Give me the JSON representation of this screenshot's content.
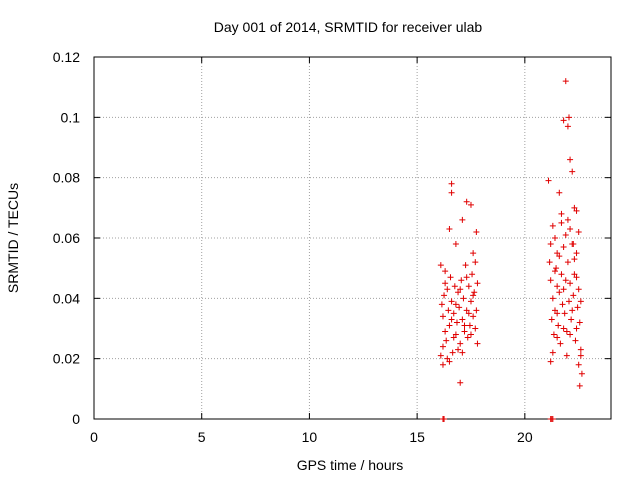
{
  "chart_data": {
    "type": "scatter",
    "title": "Day 001 of 2014, SRMTID for receiver ulab",
    "xlabel": "GPS time / hours",
    "ylabel": "SRMTID / TECUs",
    "xlim": [
      0,
      24
    ],
    "ylim": [
      0,
      0.12
    ],
    "x_ticks": [
      0,
      5,
      10,
      15,
      20
    ],
    "x_tick_labels": [
      "0",
      "5",
      "10",
      "15",
      "20"
    ],
    "y_ticks": [
      0,
      0.02,
      0.04,
      0.06,
      0.08,
      0.1,
      0.12
    ],
    "y_tick_labels": [
      "0",
      "0.02",
      "0.04",
      "0.06",
      "0.08",
      "0.1",
      "0.12"
    ],
    "grid": true,
    "legend": "none",
    "marker": "plus",
    "color": "#e00000",
    "series": [
      {
        "values": [
          [
            16.2,
            0.0
          ],
          [
            16.25,
            0.0
          ],
          [
            21.2,
            0.0
          ],
          [
            21.25,
            0.0
          ],
          [
            21.3,
            0.0
          ],
          [
            16.6,
            0.078
          ],
          [
            16.6,
            0.075
          ],
          [
            17.0,
            0.012
          ],
          [
            16.1,
            0.021
          ],
          [
            16.2,
            0.018
          ],
          [
            16.3,
            0.045
          ],
          [
            16.5,
            0.063
          ],
          [
            16.8,
            0.058
          ],
          [
            17.1,
            0.066
          ],
          [
            17.3,
            0.072
          ],
          [
            17.5,
            0.071
          ],
          [
            17.6,
            0.055
          ],
          [
            17.7,
            0.052
          ],
          [
            17.75,
            0.062
          ],
          [
            17.8,
            0.025
          ],
          [
            16.1,
            0.051
          ],
          [
            16.15,
            0.038
          ],
          [
            16.2,
            0.034
          ],
          [
            16.25,
            0.041
          ],
          [
            16.3,
            0.029
          ],
          [
            16.35,
            0.026
          ],
          [
            16.4,
            0.043
          ],
          [
            16.45,
            0.036
          ],
          [
            16.5,
            0.031
          ],
          [
            16.55,
            0.047
          ],
          [
            16.6,
            0.039
          ],
          [
            16.65,
            0.022
          ],
          [
            16.7,
            0.035
          ],
          [
            16.75,
            0.044
          ],
          [
            16.8,
            0.028
          ],
          [
            16.85,
            0.032
          ],
          [
            16.9,
            0.042
          ],
          [
            16.95,
            0.037
          ],
          [
            17.0,
            0.025
          ],
          [
            17.05,
            0.046
          ],
          [
            17.1,
            0.033
          ],
          [
            17.15,
            0.04
          ],
          [
            17.2,
            0.029
          ],
          [
            17.25,
            0.051
          ],
          [
            17.3,
            0.036
          ],
          [
            17.35,
            0.027
          ],
          [
            17.4,
            0.044
          ],
          [
            17.45,
            0.031
          ],
          [
            17.5,
            0.039
          ],
          [
            17.55,
            0.048
          ],
          [
            17.6,
            0.034
          ],
          [
            17.65,
            0.042
          ],
          [
            17.7,
            0.03
          ],
          [
            17.75,
            0.036
          ],
          [
            17.8,
            0.045
          ],
          [
            16.2,
            0.024
          ],
          [
            16.4,
            0.02
          ],
          [
            16.6,
            0.033
          ],
          [
            16.8,
            0.038
          ],
          [
            17.0,
            0.043
          ],
          [
            17.2,
            0.031
          ],
          [
            17.4,
            0.035
          ],
          [
            17.6,
            0.041
          ],
          [
            16.3,
            0.049
          ],
          [
            16.7,
            0.027
          ],
          [
            17.1,
            0.022
          ],
          [
            17.5,
            0.028
          ],
          [
            16.5,
            0.019
          ],
          [
            16.9,
            0.023
          ],
          [
            17.3,
            0.047
          ],
          [
            21.1,
            0.079
          ],
          [
            21.2,
            0.019
          ],
          [
            21.3,
            0.064
          ],
          [
            21.4,
            0.06
          ],
          [
            21.5,
            0.055
          ],
          [
            21.6,
            0.075
          ],
          [
            21.7,
            0.068
          ],
          [
            21.8,
            0.099
          ],
          [
            21.9,
            0.112
          ],
          [
            22.0,
            0.097
          ],
          [
            22.05,
            0.1
          ],
          [
            22.1,
            0.086
          ],
          [
            22.2,
            0.082
          ],
          [
            22.3,
            0.07
          ],
          [
            22.4,
            0.069
          ],
          [
            22.5,
            0.062
          ],
          [
            22.55,
            0.011
          ],
          [
            22.6,
            0.023
          ],
          [
            22.65,
            0.015
          ],
          [
            22.5,
            0.018
          ],
          [
            21.15,
            0.052
          ],
          [
            21.2,
            0.046
          ],
          [
            21.25,
            0.033
          ],
          [
            21.3,
            0.04
          ],
          [
            21.35,
            0.028
          ],
          [
            21.4,
            0.036
          ],
          [
            21.45,
            0.05
          ],
          [
            21.5,
            0.044
          ],
          [
            21.55,
            0.031
          ],
          [
            21.6,
            0.042
          ],
          [
            21.65,
            0.025
          ],
          [
            21.7,
            0.048
          ],
          [
            21.75,
            0.038
          ],
          [
            21.8,
            0.057
          ],
          [
            21.85,
            0.035
          ],
          [
            21.9,
            0.046
          ],
          [
            21.95,
            0.029
          ],
          [
            22.0,
            0.052
          ],
          [
            22.05,
            0.039
          ],
          [
            22.1,
            0.045
          ],
          [
            22.15,
            0.033
          ],
          [
            22.2,
            0.058
          ],
          [
            22.25,
            0.041
          ],
          [
            22.3,
            0.048
          ],
          [
            22.35,
            0.026
          ],
          [
            22.4,
            0.055
          ],
          [
            22.45,
            0.037
          ],
          [
            22.5,
            0.043
          ],
          [
            22.55,
            0.032
          ],
          [
            22.6,
            0.039
          ],
          [
            21.3,
            0.022
          ],
          [
            21.5,
            0.027
          ],
          [
            21.7,
            0.065
          ],
          [
            21.9,
            0.061
          ],
          [
            22.1,
            0.063
          ],
          [
            22.3,
            0.053
          ],
          [
            21.4,
            0.049
          ],
          [
            21.6,
            0.054
          ],
          [
            21.8,
            0.03
          ],
          [
            22.0,
            0.066
          ],
          [
            22.2,
            0.036
          ],
          [
            22.4,
            0.03
          ],
          [
            22.6,
            0.021
          ],
          [
            21.2,
            0.058
          ],
          [
            21.5,
            0.035
          ],
          [
            21.8,
            0.043
          ],
          [
            22.1,
            0.028
          ],
          [
            22.4,
            0.047
          ],
          [
            21.95,
            0.021
          ],
          [
            22.25,
            0.058
          ]
        ]
      }
    ]
  }
}
